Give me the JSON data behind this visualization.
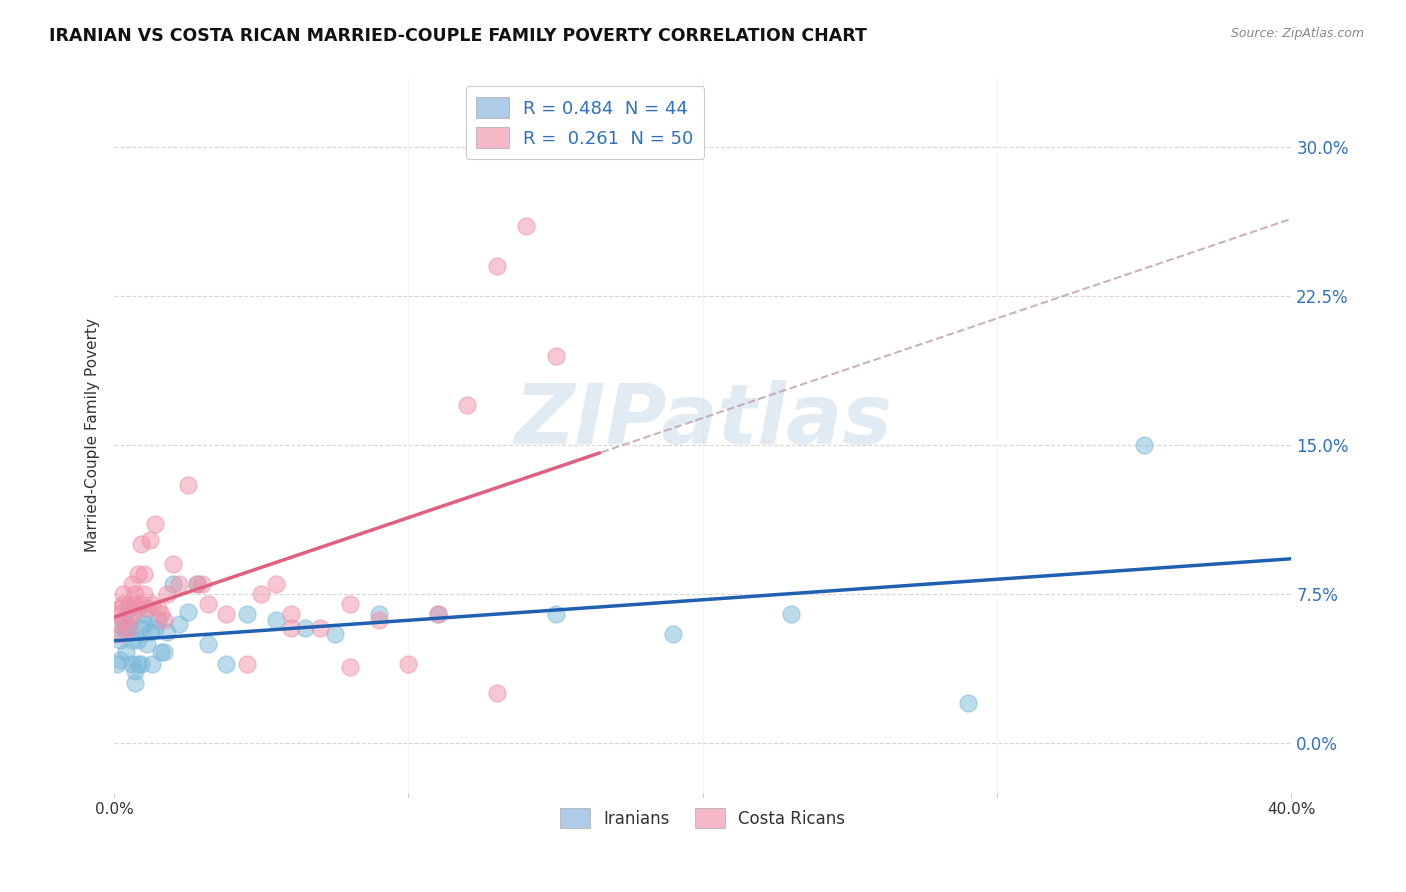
{
  "title": "IRANIAN VS COSTA RICAN MARRIED-COUPLE FAMILY POVERTY CORRELATION CHART",
  "source": "Source: ZipAtlas.com",
  "ylabel": "Married-Couple Family Poverty",
  "ytick_vals": [
    0.0,
    0.075,
    0.15,
    0.225,
    0.3
  ],
  "ytick_labels": [
    "0.0%",
    "7.5%",
    "15.0%",
    "22.5%",
    "30.0%"
  ],
  "xrange": [
    0.0,
    0.4
  ],
  "yrange": [
    -0.025,
    0.335
  ],
  "iranian_color": "#7ab8d9",
  "costarican_color": "#f090a8",
  "iranian_line_color": "#2060b0",
  "costarican_line_color": "#e06080",
  "dashed_line_color": "#c0a0a8",
  "background_color": "#ffffff",
  "grid_color": "#cccccc",
  "legend_box_entries": [
    {
      "label": "R = 0.484  N = 44",
      "facecolor": "#aecce8"
    },
    {
      "label": "R =  0.261  N = 50",
      "facecolor": "#f4b8c8"
    }
  ],
  "legend_bottom_entries": [
    {
      "label": "Iranians",
      "facecolor": "#aecce8"
    },
    {
      "label": "Costa Ricans",
      "facecolor": "#f4b8c8"
    }
  ],
  "iranians_x": [
    0.001,
    0.002,
    0.002,
    0.003,
    0.003,
    0.004,
    0.004,
    0.005,
    0.005,
    0.006,
    0.006,
    0.007,
    0.007,
    0.008,
    0.008,
    0.009,
    0.009,
    0.01,
    0.01,
    0.011,
    0.012,
    0.013,
    0.014,
    0.015,
    0.016,
    0.017,
    0.018,
    0.02,
    0.022,
    0.025,
    0.028,
    0.032,
    0.038,
    0.045,
    0.055,
    0.065,
    0.075,
    0.09,
    0.11,
    0.15,
    0.19,
    0.23,
    0.29,
    0.35
  ],
  "iranians_y": [
    0.04,
    0.042,
    0.052,
    0.058,
    0.062,
    0.046,
    0.058,
    0.06,
    0.068,
    0.052,
    0.04,
    0.036,
    0.03,
    0.04,
    0.052,
    0.058,
    0.04,
    0.06,
    0.065,
    0.05,
    0.056,
    0.04,
    0.058,
    0.062,
    0.046,
    0.046,
    0.056,
    0.08,
    0.06,
    0.066,
    0.08,
    0.05,
    0.04,
    0.065,
    0.062,
    0.058,
    0.055,
    0.065,
    0.065,
    0.065,
    0.055,
    0.065,
    0.02,
    0.15
  ],
  "costaricans_x": [
    0.001,
    0.001,
    0.002,
    0.002,
    0.003,
    0.003,
    0.004,
    0.005,
    0.005,
    0.006,
    0.006,
    0.007,
    0.007,
    0.008,
    0.008,
    0.009,
    0.009,
    0.01,
    0.01,
    0.011,
    0.012,
    0.013,
    0.014,
    0.015,
    0.016,
    0.017,
    0.018,
    0.02,
    0.022,
    0.025,
    0.028,
    0.032,
    0.038,
    0.045,
    0.05,
    0.055,
    0.06,
    0.07,
    0.08,
    0.09,
    0.1,
    0.11,
    0.12,
    0.13,
    0.14,
    0.15,
    0.03,
    0.06,
    0.08,
    0.13
  ],
  "costaricans_y": [
    0.06,
    0.065,
    0.055,
    0.068,
    0.07,
    0.075,
    0.062,
    0.07,
    0.058,
    0.065,
    0.08,
    0.07,
    0.075,
    0.085,
    0.068,
    0.1,
    0.07,
    0.075,
    0.085,
    0.068,
    0.102,
    0.07,
    0.11,
    0.068,
    0.065,
    0.062,
    0.075,
    0.09,
    0.08,
    0.13,
    0.08,
    0.07,
    0.065,
    0.04,
    0.075,
    0.08,
    0.065,
    0.058,
    0.07,
    0.062,
    0.04,
    0.065,
    0.17,
    0.24,
    0.26,
    0.195,
    0.08,
    0.058,
    0.038,
    0.025
  ],
  "watermark_text": "ZIPatlas",
  "watermark_color": "#c5d8e8",
  "watermark_alpha": 0.5
}
